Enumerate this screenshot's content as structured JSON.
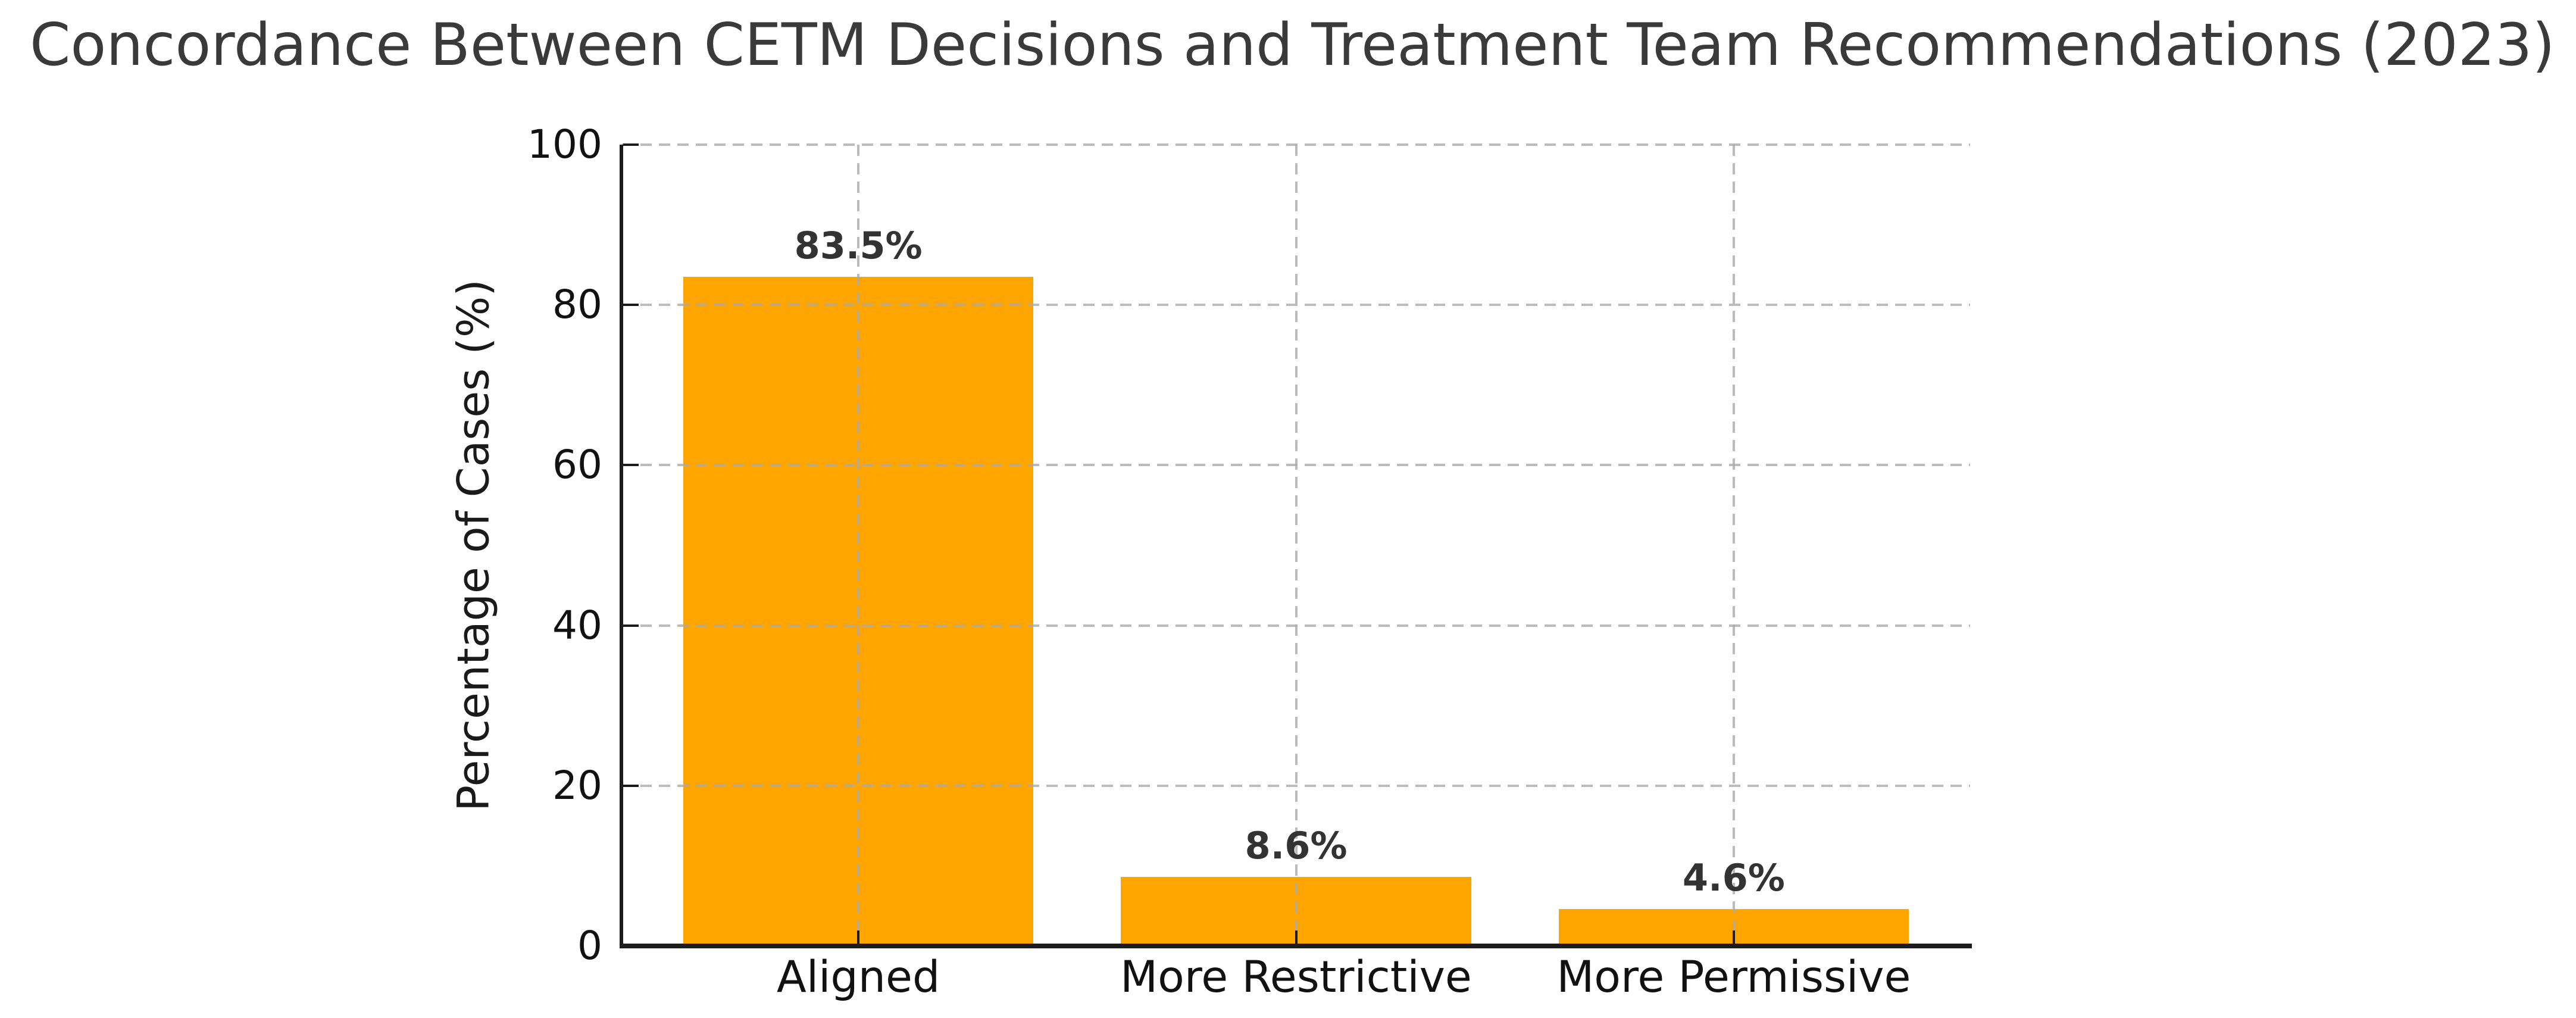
{
  "chart_data": {
    "type": "bar",
    "title": "Concordance Between CETM Decisions and Treatment Team Recommendations (2023)",
    "ylabel": "Percentage of Cases (%)",
    "xlabel": "",
    "categories": [
      "Aligned",
      "More Restrictive",
      "More Permissive"
    ],
    "values": [
      83.5,
      8.6,
      4.6
    ],
    "value_labels": [
      "83.5%",
      "8.6%",
      "4.6%"
    ],
    "ylim": [
      0,
      100
    ],
    "yticks": [
      0,
      20,
      40,
      60,
      80,
      100
    ],
    "bar_color": "#FFA500",
    "grid": {
      "on": true,
      "style": "dashed",
      "color": "#aaaaaa",
      "drawn_above_bars": true
    },
    "legend": "none",
    "title_color": "#3a3a3a",
    "tick_label_color": "#111111",
    "value_label_color": "#333333"
  }
}
